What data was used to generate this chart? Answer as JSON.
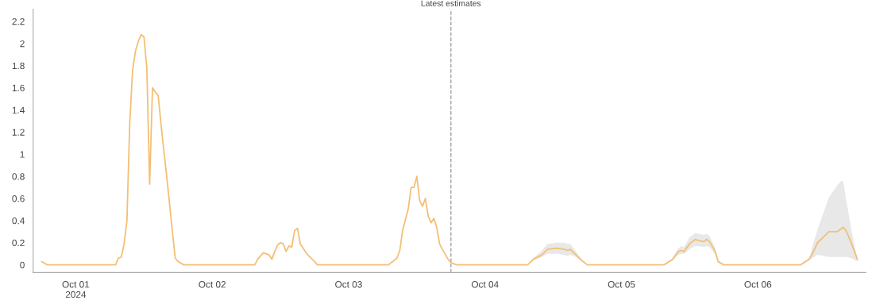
{
  "chart_data": {
    "type": "line",
    "xlim": [
      "2024-09-30T16:30",
      "2024-10-06T19:00"
    ],
    "xticks": [
      {
        "value": "2024-10-01",
        "label": "Oct 01\n2024"
      },
      {
        "value": "2024-10-02",
        "label": "Oct 02"
      },
      {
        "value": "2024-10-03",
        "label": "Oct 03"
      },
      {
        "value": "2024-10-04",
        "label": "Oct 04"
      },
      {
        "value": "2024-10-05",
        "label": "Oct 05"
      },
      {
        "value": "2024-10-06",
        "label": "Oct 06"
      }
    ],
    "ylim": [
      -0.07,
      2.31
    ],
    "yticks": [
      0,
      0.2,
      0.4,
      0.6,
      0.8,
      1,
      1.2,
      1.4,
      1.6,
      1.8,
      2,
      2.2
    ],
    "grid": false,
    "marker": "none",
    "line_style": "solid",
    "ref_lines": [
      {
        "axis": "x",
        "value": "2024-10-03T18:00",
        "label": "Latest estimates",
        "color": "#999999",
        "line_style": "dashed"
      }
    ],
    "series": [
      {
        "color": "#f4bf75",
        "x": [
          "2024-09-30T18:00",
          "2024-09-30T19:00",
          "2024-10-01T07:00",
          "2024-10-01T07:30",
          "2024-10-01T08:00",
          "2024-10-01T08:30",
          "2024-10-01T09:00",
          "2024-10-01T09:30",
          "2024-10-01T10:00",
          "2024-10-01T10:30",
          "2024-10-01T11:00",
          "2024-10-01T11:30",
          "2024-10-01T12:00",
          "2024-10-01T12:30",
          "2024-10-01T13:00",
          "2024-10-01T13:30",
          "2024-10-01T14:00",
          "2024-10-01T14:30",
          "2024-10-01T15:00",
          "2024-10-01T15:30",
          "2024-10-01T16:00",
          "2024-10-01T16:30",
          "2024-10-01T17:00",
          "2024-10-01T17:30",
          "2024-10-01T18:00",
          "2024-10-01T19:00",
          "2024-10-02T07:30",
          "2024-10-02T08:00",
          "2024-10-02T09:00",
          "2024-10-02T09:30",
          "2024-10-02T10:00",
          "2024-10-02T10:30",
          "2024-10-02T11:00",
          "2024-10-02T11:30",
          "2024-10-02T12:00",
          "2024-10-02T12:30",
          "2024-10-02T13:00",
          "2024-10-02T13:30",
          "2024-10-02T14:00",
          "2024-10-02T14:30",
          "2024-10-02T15:00",
          "2024-10-02T15:30",
          "2024-10-02T16:00",
          "2024-10-02T16:30",
          "2024-10-02T17:00",
          "2024-10-02T18:00",
          "2024-10-02T18:30",
          "2024-10-03T07:00",
          "2024-10-03T08:30",
          "2024-10-03T09:00",
          "2024-10-03T09:30",
          "2024-10-03T10:30",
          "2024-10-03T11:00",
          "2024-10-03T11:30",
          "2024-10-03T12:00",
          "2024-10-03T12:30",
          "2024-10-03T13:00",
          "2024-10-03T13:30",
          "2024-10-03T14:00",
          "2024-10-03T14:30",
          "2024-10-03T15:00",
          "2024-10-03T15:30",
          "2024-10-03T16:00",
          "2024-10-03T16:30",
          "2024-10-03T17:30",
          "2024-10-03T18:00",
          "2024-10-03T19:00",
          "2024-10-04T07:30",
          "2024-10-04T08:30",
          "2024-10-04T10:00",
          "2024-10-04T11:00",
          "2024-10-04T12:30",
          "2024-10-04T14:00",
          "2024-10-04T14:30",
          "2024-10-04T15:00",
          "2024-10-04T16:00",
          "2024-10-04T17:00",
          "2024-10-04T18:00",
          "2024-10-05T07:30",
          "2024-10-05T09:00",
          "2024-10-05T10:00",
          "2024-10-05T10:30",
          "2024-10-05T11:00",
          "2024-10-05T12:00",
          "2024-10-05T13:00",
          "2024-10-05T13:30",
          "2024-10-05T14:30",
          "2024-10-05T15:00",
          "2024-10-05T15:30",
          "2024-10-05T16:30",
          "2024-10-05T17:00",
          "2024-10-05T18:00",
          "2024-10-06T07:30",
          "2024-10-06T09:00",
          "2024-10-06T09:30",
          "2024-10-06T10:30",
          "2024-10-06T12:30",
          "2024-10-06T14:00",
          "2024-10-06T14:30",
          "2024-10-06T15:00",
          "2024-10-06T15:30",
          "2024-10-06T16:30",
          "2024-10-06T17:30"
        ],
        "values": [
          0.03,
          0,
          0,
          0.06,
          0.07,
          0.19,
          0.4,
          1.29,
          1.76,
          1.93,
          2.02,
          2.08,
          2.06,
          1.78,
          0.73,
          1.6,
          1.56,
          1.53,
          1.27,
          1.03,
          0.8,
          0.55,
          0.3,
          0.06,
          0.03,
          0,
          0,
          0.05,
          0.11,
          0.1,
          0.09,
          0.05,
          0.12,
          0.18,
          0.2,
          0.19,
          0.12,
          0.17,
          0.16,
          0.31,
          0.33,
          0.19,
          0.15,
          0.11,
          0.08,
          0.03,
          0,
          0,
          0.06,
          0.13,
          0.31,
          0.51,
          0.7,
          0.7,
          0.8,
          0.58,
          0.53,
          0.6,
          0.44,
          0.38,
          0.42,
          0.34,
          0.19,
          0.14,
          0.05,
          0.02,
          0,
          0,
          0.05,
          0.09,
          0.14,
          0.15,
          0.14,
          0.13,
          0.14,
          0.09,
          0.04,
          0,
          0,
          0.05,
          0.12,
          0.13,
          0.12,
          0.19,
          0.23,
          0.22,
          0.21,
          0.23,
          0.21,
          0.12,
          0.03,
          0,
          0,
          0.05,
          0.09,
          0.2,
          0.3,
          0.3,
          0.32,
          0.34,
          0.31,
          0.19,
          0.05
        ],
        "lower": [
          null,
          null,
          null,
          null,
          null,
          null,
          null,
          null,
          null,
          null,
          null,
          null,
          null,
          null,
          null,
          null,
          null,
          null,
          null,
          null,
          null,
          null,
          null,
          null,
          null,
          null,
          null,
          null,
          null,
          null,
          null,
          null,
          null,
          null,
          null,
          null,
          null,
          null,
          null,
          null,
          null,
          null,
          null,
          null,
          null,
          null,
          null,
          null,
          null,
          null,
          null,
          null,
          null,
          null,
          null,
          null,
          null,
          null,
          null,
          null,
          null,
          null,
          null,
          null,
          null,
          0.02,
          0,
          0,
          0.04,
          0.07,
          0.1,
          0.1,
          0.09,
          0.08,
          0.09,
          0.07,
          0.03,
          0,
          0,
          0.04,
          0.09,
          0.1,
          0.1,
          0.14,
          0.17,
          0.17,
          0.16,
          0.17,
          0.16,
          0.09,
          0.02,
          0,
          0,
          0.04,
          0.06,
          0.09,
          0.07,
          0.07,
          0.07,
          0.07,
          0.07,
          0.06,
          0.03
        ],
        "upper": [
          null,
          null,
          null,
          null,
          null,
          null,
          null,
          null,
          null,
          null,
          null,
          null,
          null,
          null,
          null,
          null,
          null,
          null,
          null,
          null,
          null,
          null,
          null,
          null,
          null,
          null,
          null,
          null,
          null,
          null,
          null,
          null,
          null,
          null,
          null,
          null,
          null,
          null,
          null,
          null,
          null,
          null,
          null,
          null,
          null,
          null,
          null,
          null,
          null,
          null,
          null,
          null,
          null,
          null,
          null,
          null,
          null,
          null,
          null,
          null,
          null,
          null,
          null,
          null,
          null,
          0.02,
          0,
          0,
          0.06,
          0.13,
          0.19,
          0.2,
          0.2,
          0.19,
          0.19,
          0.12,
          0.05,
          0,
          0,
          0.06,
          0.15,
          0.17,
          0.16,
          0.25,
          0.29,
          0.28,
          0.27,
          0.28,
          0.26,
          0.15,
          0.04,
          0,
          0,
          0.06,
          0.15,
          0.32,
          0.61,
          0.72,
          0.75,
          0.76,
          0.6,
          0.3,
          0.05
        ]
      }
    ]
  }
}
